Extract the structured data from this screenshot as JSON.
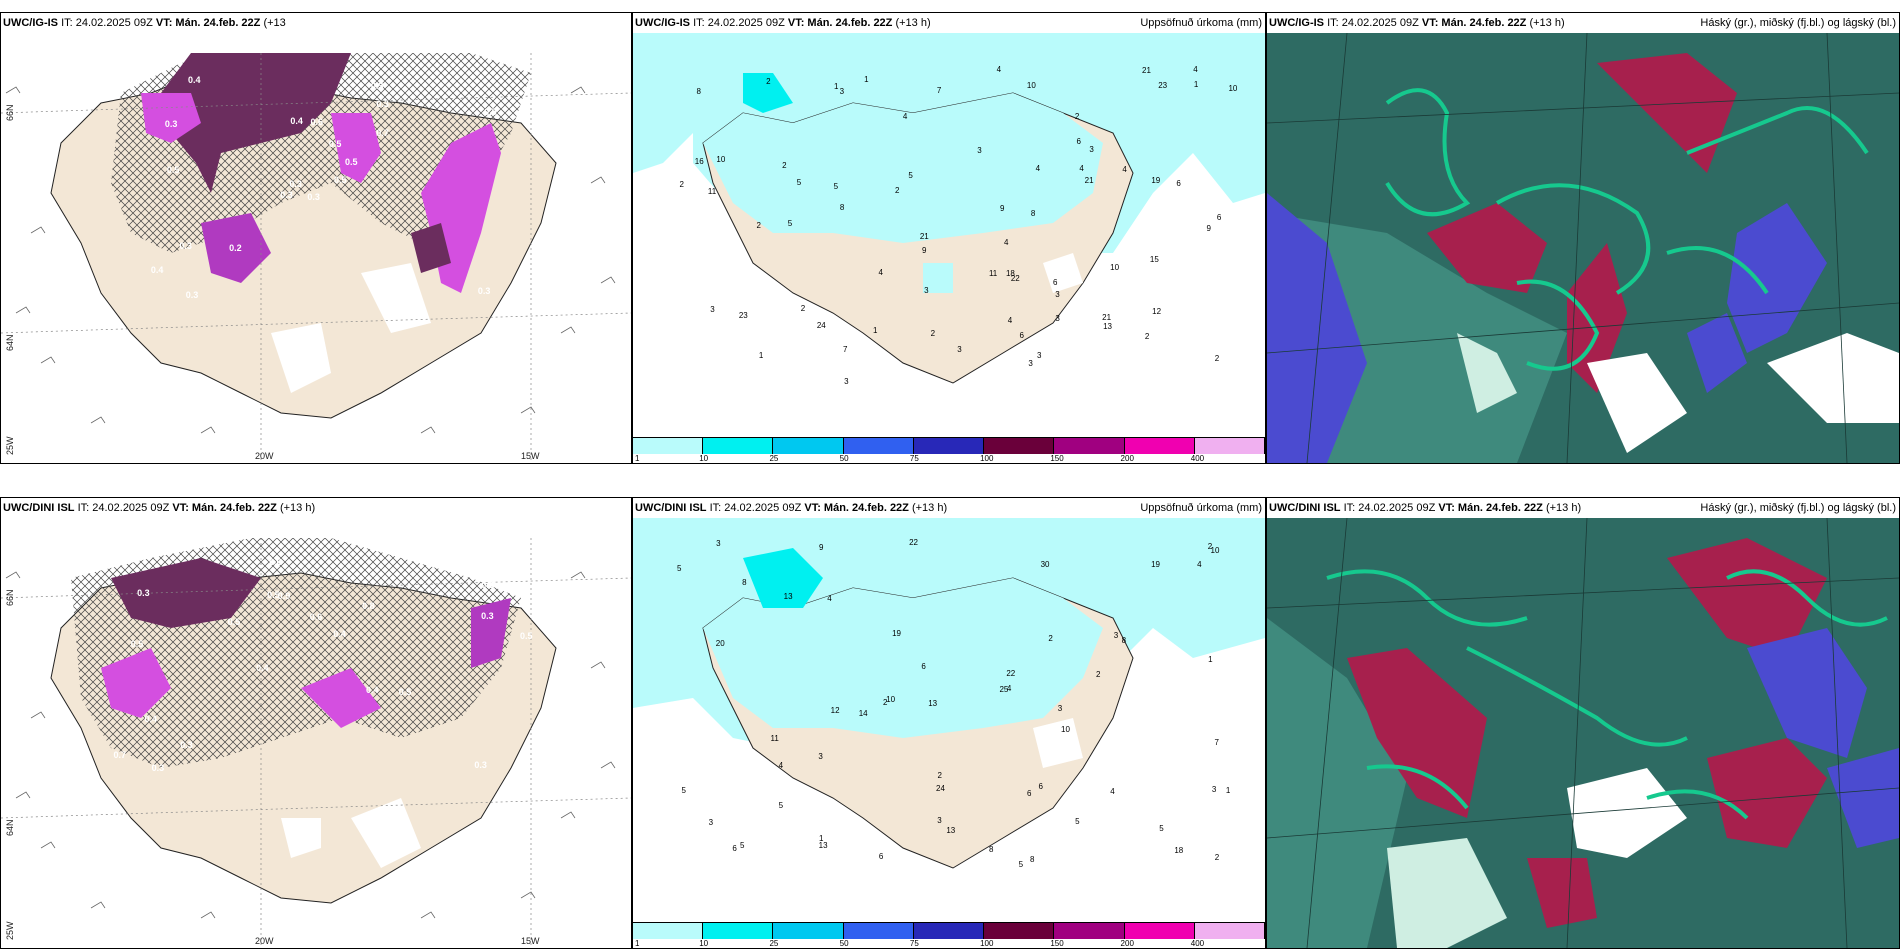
{
  "rows": [
    {
      "model": "UWC/IG-IS",
      "it": "IT: 24.02.2025 09Z",
      "vt_label": "VT:",
      "vt": "Mán. 24.feb. 22Z",
      "lead": "(+13 h)",
      "left_title_model": "UWC/IG-IS",
      "left_title_rest": "IT: 24.02.2025 09Z",
      "left_title_vt": "VT: Mán. 24.feb. 22Z",
      "left_title_lead": "(+13",
      "left_title_lead2": "h)",
      "precip_unit": "Uppsöfnuð úrkoma (mm)",
      "cloud_title": "Háský (gr.), miðský (fj.bl.) og lágský (bl.)",
      "precip_labels": [
        "3",
        "3",
        "2",
        "2",
        "4",
        "6",
        "9",
        "8",
        "9",
        "24",
        "23",
        "16",
        "21",
        "18",
        "21",
        "21",
        "11",
        "23",
        "10",
        "19",
        "21",
        "22",
        "7",
        "13",
        "8",
        "3",
        "5",
        "5",
        "3",
        "4",
        "3",
        "4",
        "2",
        "1",
        "1",
        "2",
        "4",
        "10",
        "6",
        "6",
        "7",
        "9",
        "10",
        "12",
        "10",
        "15",
        "11",
        "3",
        "4",
        "1",
        "4",
        "3",
        "5",
        "6",
        "8",
        "2",
        "2",
        "5",
        "3",
        "3",
        "2",
        "3",
        "4",
        "2",
        "1",
        "1",
        "2",
        "4",
        "3",
        "2",
        "6",
        "4"
      ],
      "bulk_labels": [
        "0.3",
        "0.3",
        "0.3",
        "0.4",
        "0.5",
        "0.2",
        "0.3",
        "0.6",
        "0.3",
        "0.5",
        "0.4",
        "0.3",
        "0.5",
        "0.5",
        "0.3",
        "0.7",
        "0.3",
        "0.4",
        "0.5",
        "0.3"
      ]
    },
    {
      "model": "UWC/DINI ISL",
      "it": "IT: 24.02.2025 09Z",
      "vt_label": "VT:",
      "vt": "Mán. 24.feb. 22Z",
      "lead": "(+13 h)",
      "precip_unit": "Uppsöfnuð úrkoma (mm)",
      "cloud_title": "Háský (gr.), miðský (fj.bl.) og lágský (bl.)",
      "precip_labels": [
        "6",
        "5",
        "1",
        "5",
        "9",
        "8",
        "12",
        "18",
        "22",
        "19",
        "19",
        "13",
        "10",
        "24",
        "30",
        "25",
        "20",
        "13",
        "14",
        "5",
        "6",
        "10",
        "22",
        "6",
        "8",
        "11",
        "5",
        "4",
        "3",
        "10",
        "13",
        "8",
        "2",
        "4",
        "5",
        "3",
        "3",
        "3",
        "2",
        "5",
        "4",
        "2",
        "1",
        "5",
        "4",
        "6",
        "7",
        "8",
        "13",
        "3",
        "2",
        "1",
        "2",
        "4",
        "3",
        "3",
        "2",
        "6"
      ],
      "bulk_labels": [
        "0.3",
        "0.5",
        "0.3",
        "0.4",
        "0.8",
        "0.3",
        "0.5",
        "0.6",
        "0.4",
        "0.5",
        "0.7",
        "0.3",
        "0.9",
        "0.4",
        "0.5",
        "0.3",
        "0.6",
        "0.5",
        "0.4",
        "0.3"
      ]
    }
  ],
  "axes": {
    "lat_top": "66N",
    "lat_mid": "64N",
    "lat_bottom": "25W",
    "lon_left": "20W",
    "lon_right": "15W"
  },
  "colorbar": {
    "ticks": [
      "1",
      "10",
      "25",
      "50",
      "75",
      "100",
      "150",
      "200",
      "400"
    ],
    "colors": [
      "#b9fbfb",
      "#00f0f0",
      "#00c8f0",
      "#3060f0",
      "#2828b8",
      "#6a003a",
      "#a00080",
      "#f000b0",
      "#f0b0f0"
    ]
  },
  "colors": {
    "land": "#f3e7d6",
    "precip_light": "#b9fbfb",
    "bulk_purple": "#6b2d5e",
    "bulk_pink": "#d44fe0",
    "cloud_teal": "#2e6b63",
    "cloud_green": "#16c98e",
    "cloud_red": "#a7204d",
    "cloud_blue": "#4b4bd0"
  }
}
